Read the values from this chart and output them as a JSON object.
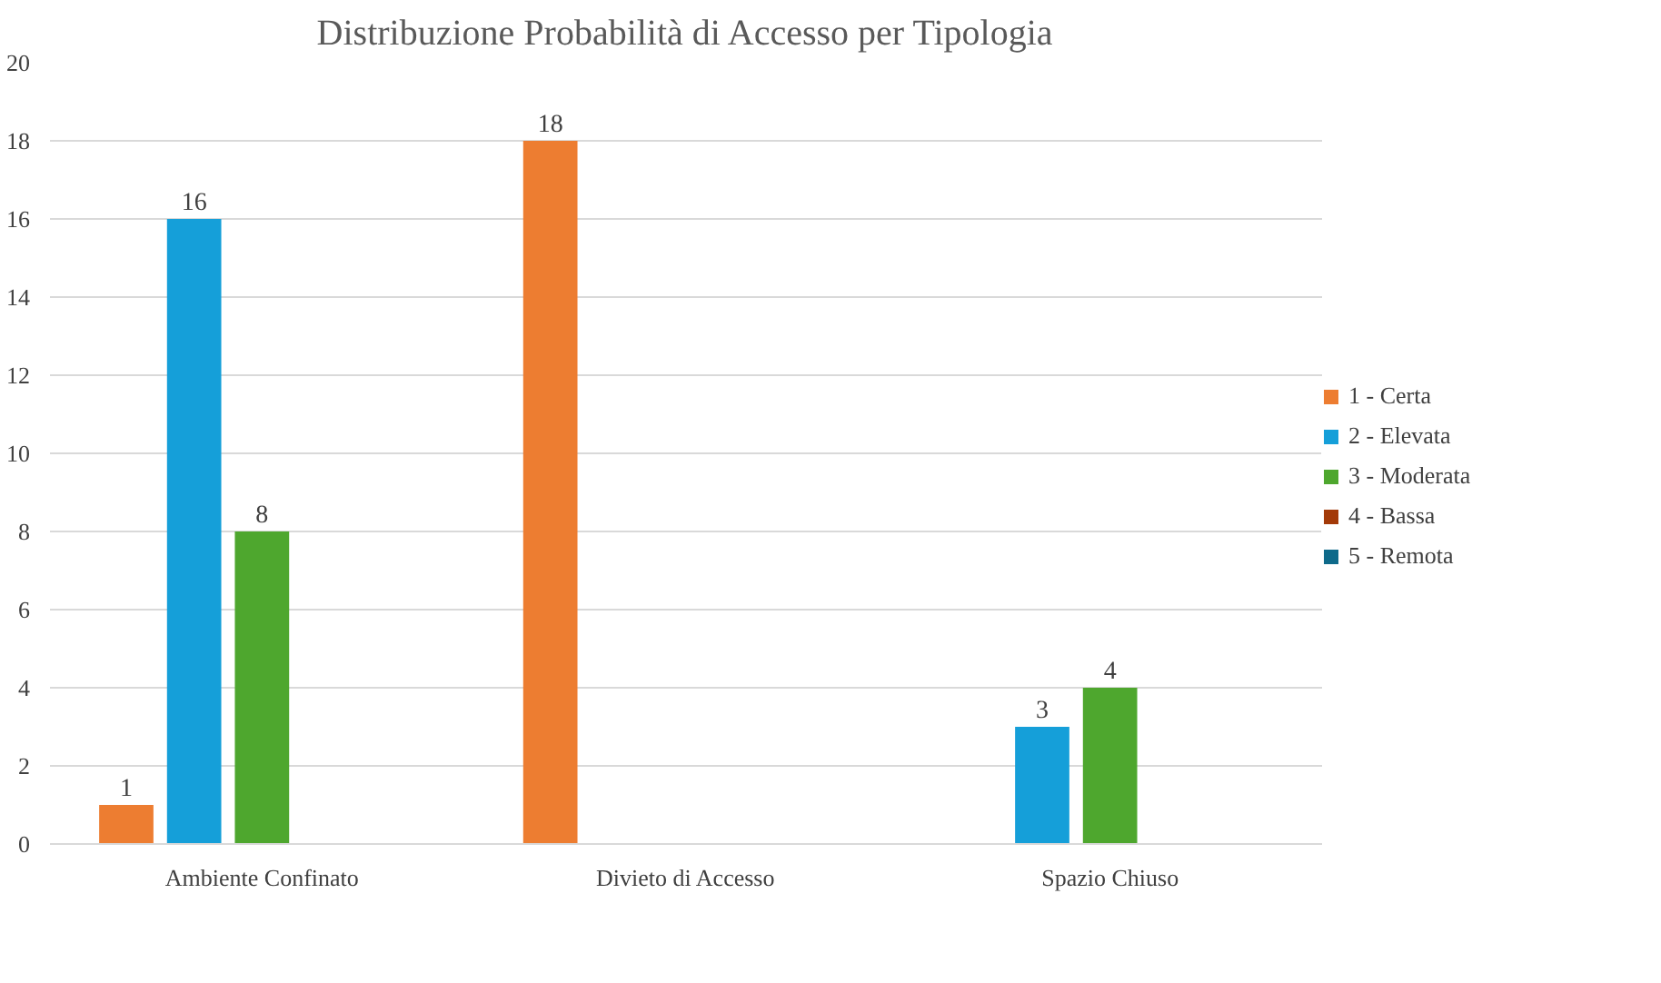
{
  "chart_data": {
    "type": "bar",
    "title": "Distribuzione Probabilità di Accesso per Tipologia",
    "categories": [
      "Ambiente Confinato",
      "Divieto di Accesso",
      "Spazio Chiuso"
    ],
    "series": [
      {
        "name": "1 - Certa",
        "color": "#ed7d31",
        "values": [
          1,
          18,
          null
        ]
      },
      {
        "name": "2 - Elevata",
        "color": "#159fd9",
        "values": [
          16,
          null,
          3
        ]
      },
      {
        "name": "3 - Moderata",
        "color": "#4ea72e",
        "values": [
          8,
          null,
          4
        ]
      },
      {
        "name": "4 - Bassa",
        "color": "#a33a08",
        "values": [
          null,
          null,
          null
        ]
      },
      {
        "name": "5 - Remota",
        "color": "#0e6a8a",
        "values": [
          null,
          null,
          null
        ]
      }
    ],
    "ylim": [
      0,
      20
    ],
    "yticks": [
      0,
      2,
      4,
      6,
      8,
      10,
      12,
      14,
      16,
      18,
      20
    ],
    "grid": "y",
    "legend": "right",
    "data_labels": true
  }
}
